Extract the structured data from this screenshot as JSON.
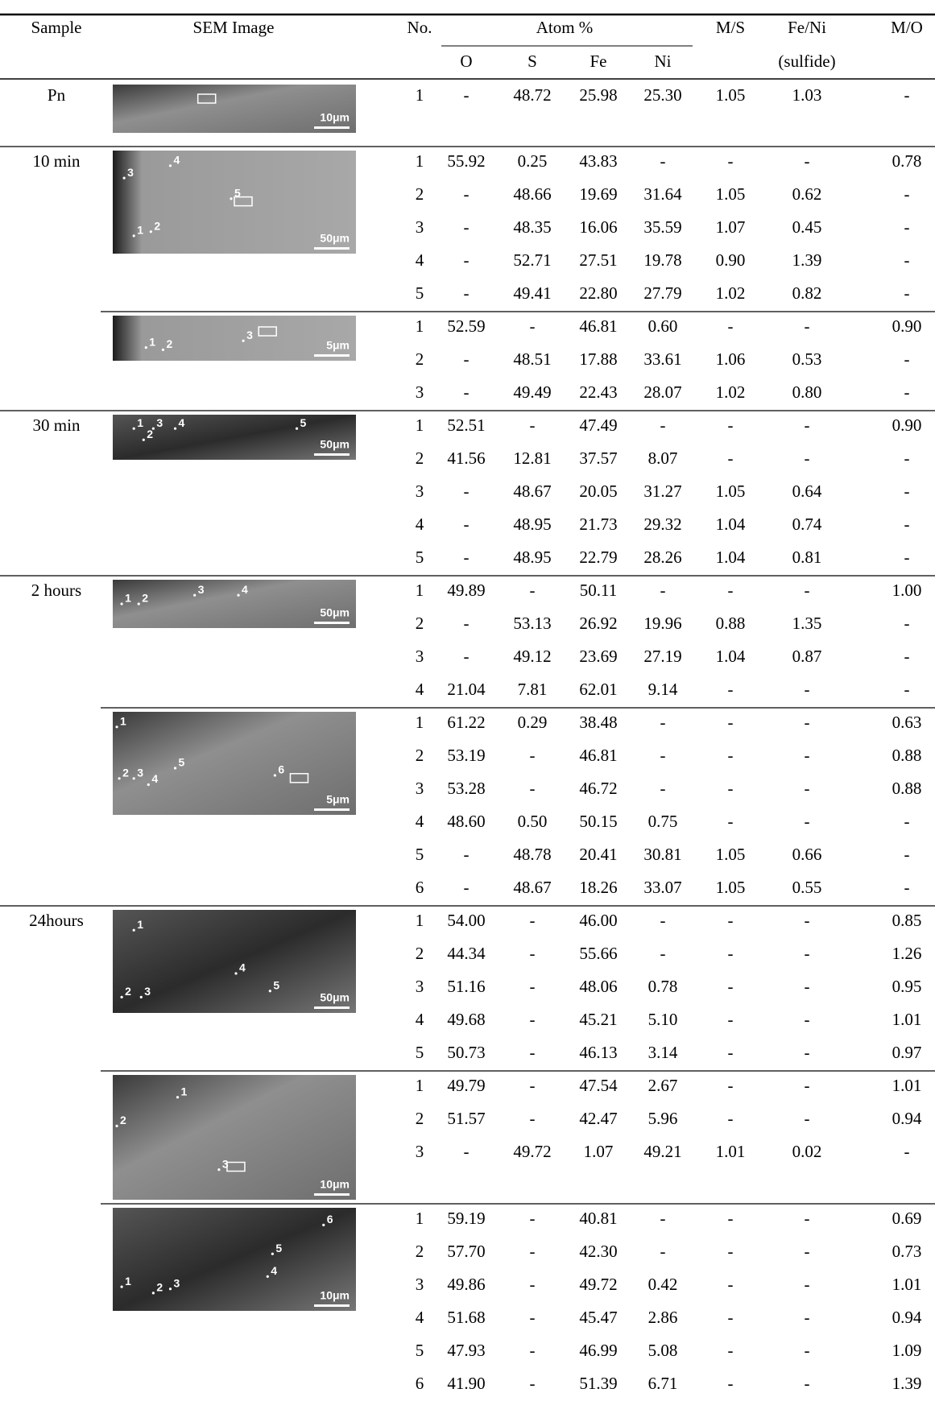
{
  "header": {
    "sample": "Sample",
    "sem_image": "SEM Image",
    "no": "No.",
    "atom": "Atom %",
    "o": "O",
    "s": "S",
    "fe": "Fe",
    "ni": "Ni",
    "ms": "M/S",
    "feni": "Fe/Ni",
    "feni_sub": "(sulfide)",
    "mo": "M/O"
  },
  "groups": [
    {
      "sample": "Pn",
      "image": {
        "scale": "10μm",
        "points": []
      },
      "rows": [
        [
          "1",
          "-",
          "48.72",
          "25.98",
          "25.30",
          "1.05",
          "1.03",
          "-"
        ]
      ]
    },
    {
      "sample": "10 min",
      "image": {
        "scale": "50μm",
        "points": [
          "3",
          "4",
          "5",
          "1",
          "2"
        ]
      },
      "rows": [
        [
          "1",
          "55.92",
          "0.25",
          "43.83",
          "-",
          "-",
          "-",
          "0.78"
        ],
        [
          "2",
          "-",
          "48.66",
          "19.69",
          "31.64",
          "1.05",
          "0.62",
          "-"
        ],
        [
          "3",
          "-",
          "48.35",
          "16.06",
          "35.59",
          "1.07",
          "0.45",
          "-"
        ],
        [
          "4",
          "-",
          "52.71",
          "27.51",
          "19.78",
          "0.90",
          "1.39",
          "-"
        ],
        [
          "5",
          "-",
          "49.41",
          "22.80",
          "27.79",
          "1.02",
          "0.82",
          "-"
        ]
      ]
    },
    {
      "image": {
        "scale": "5μm",
        "points": [
          "1",
          "2",
          "3"
        ]
      },
      "rows": [
        [
          "1",
          "52.59",
          "-",
          "46.81",
          "0.60",
          "-",
          "-",
          "0.90"
        ],
        [
          "2",
          "-",
          "48.51",
          "17.88",
          "33.61",
          "1.06",
          "0.53",
          "-"
        ],
        [
          "3",
          "-",
          "49.49",
          "22.43",
          "28.07",
          "1.02",
          "0.80",
          "-"
        ]
      ]
    },
    {
      "sample": "30 min",
      "image": {
        "scale": "50μm",
        "points": [
          "1",
          "3",
          "2",
          "4",
          "5"
        ]
      },
      "rows": [
        [
          "1",
          "52.51",
          "-",
          "47.49",
          "-",
          "-",
          "-",
          "0.90"
        ],
        [
          "2",
          "41.56",
          "12.81",
          "37.57",
          "8.07",
          "-",
          "-",
          "-"
        ],
        [
          "3",
          "-",
          "48.67",
          "20.05",
          "31.27",
          "1.05",
          "0.64",
          "-"
        ],
        [
          "4",
          "-",
          "48.95",
          "21.73",
          "29.32",
          "1.04",
          "0.74",
          "-"
        ],
        [
          "5",
          "-",
          "48.95",
          "22.79",
          "28.26",
          "1.04",
          "0.81",
          "-"
        ]
      ]
    },
    {
      "sample": "2 hours",
      "image": {
        "scale": "50μm",
        "points": [
          "1",
          "2",
          "3",
          "4"
        ]
      },
      "rows": [
        [
          "1",
          "49.89",
          "-",
          "50.11",
          "-",
          "-",
          "-",
          "1.00"
        ],
        [
          "2",
          "-",
          "53.13",
          "26.92",
          "19.96",
          "0.88",
          "1.35",
          "-"
        ],
        [
          "3",
          "-",
          "49.12",
          "23.69",
          "27.19",
          "1.04",
          "0.87",
          "-"
        ],
        [
          "4",
          "21.04",
          "7.81",
          "62.01",
          "9.14",
          "-",
          "-",
          "-"
        ]
      ]
    },
    {
      "image": {
        "scale": "5μm",
        "points": [
          "1",
          "2",
          "3",
          "4",
          "5",
          "6"
        ]
      },
      "rows": [
        [
          "1",
          "61.22",
          "0.29",
          "38.48",
          "-",
          "-",
          "-",
          "0.63"
        ],
        [
          "2",
          "53.19",
          "-",
          "46.81",
          "-",
          "-",
          "-",
          "0.88"
        ],
        [
          "3",
          "53.28",
          "-",
          "46.72",
          "-",
          "-",
          "-",
          "0.88"
        ],
        [
          "4",
          "48.60",
          "0.50",
          "50.15",
          "0.75",
          "-",
          "-",
          "-"
        ],
        [
          "5",
          "-",
          "48.78",
          "20.41",
          "30.81",
          "1.05",
          "0.66",
          "-"
        ],
        [
          "6",
          "-",
          "48.67",
          "18.26",
          "33.07",
          "1.05",
          "0.55",
          "-"
        ]
      ]
    },
    {
      "sample": "24hours",
      "image": {
        "scale": "50μm",
        "points": [
          "1",
          "4",
          "5",
          "2",
          "3"
        ]
      },
      "rows": [
        [
          "1",
          "54.00",
          "-",
          "46.00",
          "-",
          "-",
          "-",
          "0.85"
        ],
        [
          "2",
          "44.34",
          "-",
          "55.66",
          "-",
          "-",
          "-",
          "1.26"
        ],
        [
          "3",
          "51.16",
          "-",
          "48.06",
          "0.78",
          "-",
          "-",
          "0.95"
        ],
        [
          "4",
          "49.68",
          "-",
          "45.21",
          "5.10",
          "-",
          "-",
          "1.01"
        ],
        [
          "5",
          "50.73",
          "-",
          "46.13",
          "3.14",
          "-",
          "-",
          "0.97"
        ]
      ]
    },
    {
      "image": {
        "scale": "10μm",
        "points": [
          "1",
          "2",
          "3"
        ]
      },
      "rows": [
        [
          "1",
          "49.79",
          "-",
          "47.54",
          "2.67",
          "-",
          "-",
          "1.01"
        ],
        [
          "2",
          "51.57",
          "-",
          "42.47",
          "5.96",
          "-",
          "-",
          "0.94"
        ],
        [
          "3",
          "-",
          "49.72",
          "1.07",
          "49.21",
          "1.01",
          "0.02",
          "-"
        ]
      ]
    },
    {
      "image": {
        "scale": "10μm",
        "points": [
          "6",
          "5",
          "4",
          "1",
          "2",
          "3"
        ]
      },
      "rows": [
        [
          "1",
          "59.19",
          "-",
          "40.81",
          "-",
          "-",
          "-",
          "0.69"
        ],
        [
          "2",
          "57.70",
          "-",
          "42.30",
          "-",
          "-",
          "-",
          "0.73"
        ],
        [
          "3",
          "49.86",
          "-",
          "49.72",
          "0.42",
          "-",
          "-",
          "1.01"
        ],
        [
          "4",
          "51.68",
          "-",
          "45.47",
          "2.86",
          "-",
          "-",
          "0.94"
        ],
        [
          "5",
          "47.93",
          "-",
          "46.99",
          "5.08",
          "-",
          "-",
          "1.09"
        ],
        [
          "6",
          "41.90",
          "-",
          "51.39",
          "6.71",
          "-",
          "-",
          "1.39"
        ]
      ]
    }
  ]
}
